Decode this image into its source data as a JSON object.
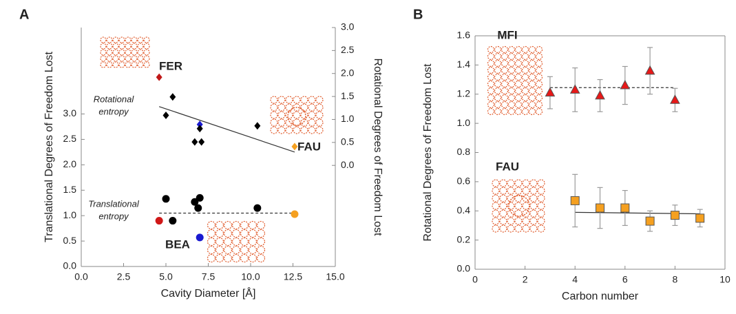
{
  "chart_data": [
    {
      "type": "scatter",
      "panel_label": "A",
      "xlabel": "Cavity Diameter [Å]",
      "ylabel": "Translational Degrees of Freedom Lost",
      "y2label": "Rotational Degrees of Freedom Lost",
      "xlim": [
        0,
        15
      ],
      "xticks": [
        {
          "value": 0,
          "label": "0.0"
        },
        2.5,
        {
          "value": 5,
          "label": "5.0"
        },
        7.5,
        {
          "value": 10,
          "label": "10.0"
        },
        12.5,
        {
          "value": 15,
          "label": "15.0"
        }
      ],
      "ylim": [
        0,
        4.7
      ],
      "yticks": [
        {
          "value": 0,
          "label": "0.0"
        },
        0.5,
        {
          "value": 1,
          "label": "1.0"
        },
        1.5,
        {
          "value": 2,
          "label": "2.0"
        },
        2.5,
        {
          "value": 3,
          "label": "3.0"
        }
      ],
      "y2lim": [
        -2.2,
        3.0
      ],
      "y2ticks": [
        {
          "value": 0,
          "label": "0.0"
        },
        0.5,
        {
          "value": 1,
          "label": "1.0"
        },
        1.5,
        {
          "value": 2,
          "label": "2.0"
        },
        2.5,
        {
          "value": 3,
          "label": "3.0"
        }
      ],
      "series": [
        {
          "marker": "circle",
          "x": [
            5.0,
            5.4,
            6.7,
            6.9,
            7.0,
            10.4,
            4.6,
            7.0,
            12.6
          ],
          "values": [
            1.33,
            0.9,
            1.27,
            1.15,
            1.35,
            1.15,
            0.9,
            0.57,
            1.03
          ],
          "colors": [
            "#000000",
            "#000000",
            "#000000",
            "#000000",
            "#000000",
            "#000000",
            "#d01818",
            "#1a1ad0",
            "#f5a020"
          ]
        },
        {
          "marker": "diamond",
          "axis": "y2",
          "x": [
            4.6,
            5.0,
            5.4,
            7.0,
            7.0,
            6.7,
            7.1,
            10.4,
            12.6
          ],
          "values": [
            1.92,
            1.09,
            1.49,
            0.89,
            0.8,
            0.51,
            0.51,
            0.86,
            0.41
          ],
          "colors": [
            "#c01818",
            "#000000",
            "#000000",
            "#1a1ad0",
            "#000000",
            "#000000",
            "#000000",
            "#000000",
            "#f5a020"
          ]
        }
      ],
      "fits": [
        {
          "x": [
            4.6,
            12.6
          ],
          "values": [
            1.05,
            1.05
          ],
          "dashed": true
        },
        {
          "x": [
            4.6,
            12.6
          ],
          "values": [
            1.28,
            0.29
          ],
          "axis": "y2",
          "dashed": false
        }
      ],
      "annotations": [
        {
          "lines": [
            "FER"
          ],
          "color": "#a01020",
          "bold": true
        },
        {
          "lines": [
            "FAU"
          ],
          "color": "#f5a020",
          "bold": true
        },
        {
          "lines": [
            "BEA"
          ],
          "color": "#1a1ad0",
          "bold": true
        },
        {
          "lines": [
            "Rotational",
            "entropy"
          ],
          "color": "#333333",
          "italic": true
        },
        {
          "lines": [
            "Translational",
            "entropy"
          ],
          "color": "#333333",
          "italic": true
        }
      ]
    },
    {
      "type": "scatter",
      "panel_label": "B",
      "xlabel": "Carbon number",
      "ylabel": "Rotational Degrees of Freedom Lost",
      "xlim": [
        0,
        10
      ],
      "xticks": [
        0,
        2,
        4,
        6,
        8,
        10
      ],
      "ylim": [
        0,
        1.6
      ],
      "yticks": [
        {
          "value": 0,
          "label": "0.0"
        },
        0.2,
        0.4,
        0.6,
        0.8,
        {
          "value": 1,
          "label": "1.0"
        },
        1.2,
        1.4,
        1.6
      ],
      "series": [
        {
          "marker": "triangle",
          "color": "#e81818",
          "x": [
            3,
            4,
            5,
            6,
            7,
            8
          ],
          "values": [
            1.21,
            1.23,
            1.19,
            1.26,
            1.36,
            1.16
          ],
          "errors": [
            0.11,
            0.15,
            0.11,
            0.13,
            0.16,
            0.08
          ]
        },
        {
          "marker": "square",
          "color": "#f5a020",
          "x": [
            4,
            5,
            6,
            7,
            8,
            9
          ],
          "values": [
            0.47,
            0.42,
            0.42,
            0.33,
            0.37,
            0.35
          ],
          "errors": [
            0.18,
            0.14,
            0.12,
            0.07,
            0.07,
            0.06
          ]
        }
      ],
      "fits": [
        {
          "x": [
            3,
            8
          ],
          "values": [
            1.245,
            1.245
          ],
          "dashed": true
        },
        {
          "x": [
            4,
            9
          ],
          "values": [
            0.39,
            0.38
          ],
          "dashed": false
        }
      ],
      "annotations": [
        {
          "lines": [
            "MFI"
          ],
          "color": "#c01818",
          "bold": true
        },
        {
          "lines": [
            "FAU"
          ],
          "color": "#f5a020",
          "bold": true
        }
      ]
    }
  ]
}
